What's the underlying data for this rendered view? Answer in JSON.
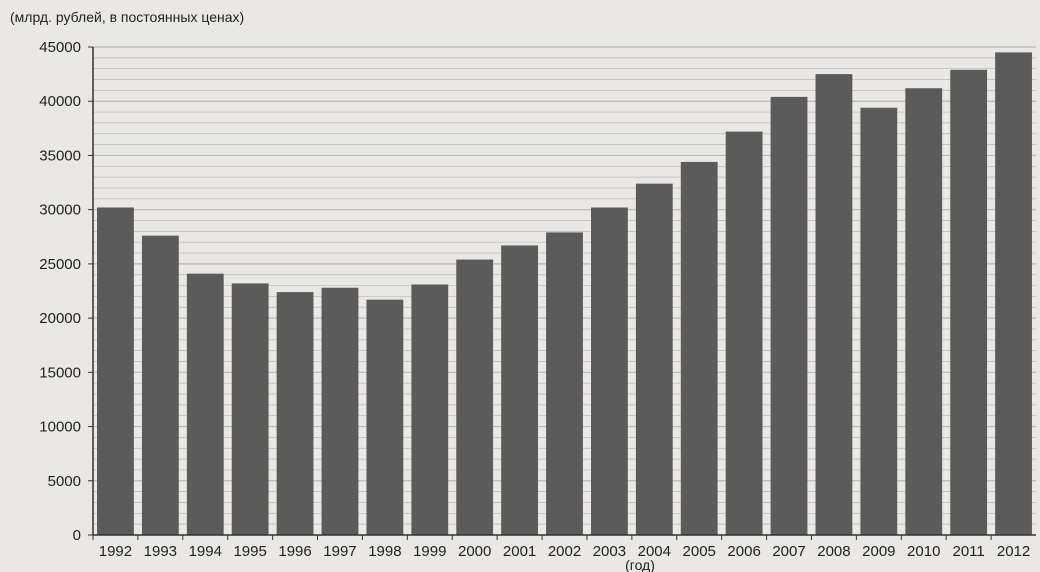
{
  "chart_data": {
    "type": "bar",
    "ylabel": "(млрд. рублей, в постоянных ценах)",
    "xlabel": "(год)",
    "categories": [
      "1992",
      "1993",
      "1994",
      "1995",
      "1996",
      "1997",
      "1998",
      "1999",
      "2000",
      "2001",
      "2002",
      "2003",
      "2004",
      "2005",
      "2006",
      "2007",
      "2008",
      "2009",
      "2010",
      "2011",
      "2012"
    ],
    "values": [
      30200,
      27600,
      24100,
      23200,
      22400,
      22800,
      21700,
      23100,
      25400,
      26700,
      27900,
      30200,
      32400,
      34400,
      37200,
      40400,
      42500,
      39400,
      41200,
      42900,
      44500
    ],
    "ylim": [
      0,
      45000
    ],
    "yticks": [
      0,
      5000,
      10000,
      15000,
      20000,
      25000,
      30000,
      35000,
      40000,
      45000
    ],
    "grid": true,
    "colors": {
      "bar": "#5b5b5b",
      "background": "#e9e8e4",
      "grid": "#b9b9b6",
      "axis": "#333333"
    }
  }
}
